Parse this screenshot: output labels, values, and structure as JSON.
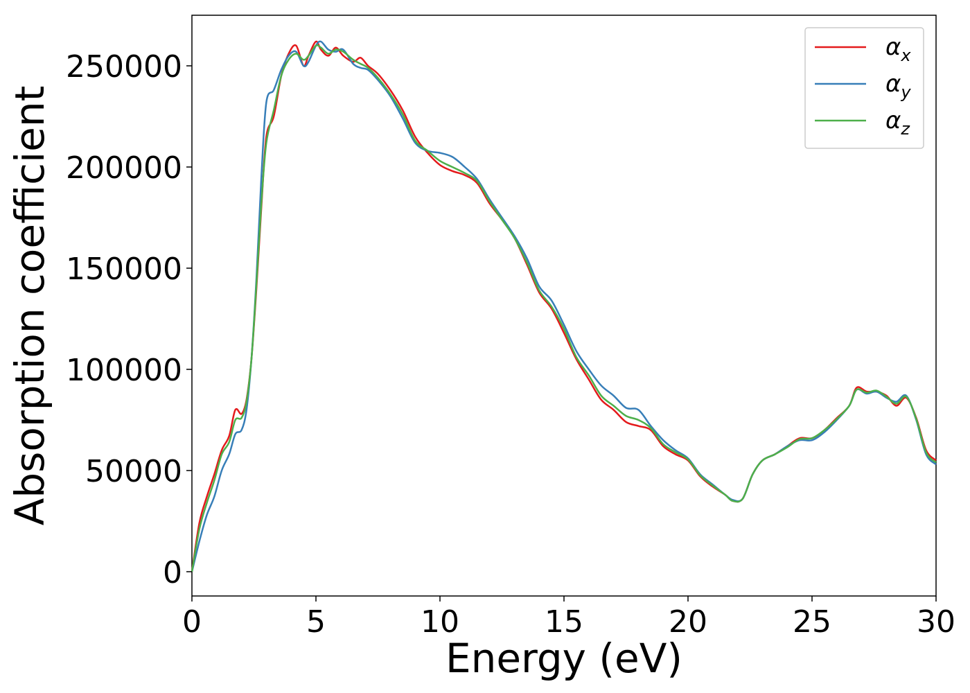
{
  "chart_data": {
    "type": "line",
    "title": "",
    "xlabel": "Energy (eV)",
    "ylabel": "Absorption coefficient",
    "xlim": [
      0,
      30
    ],
    "ylim": [
      -12000,
      275000
    ],
    "x_ticks": [
      "0",
      "5",
      "10",
      "15",
      "20",
      "25",
      "30"
    ],
    "y_ticks": [
      "0",
      "50000",
      "100000",
      "150000",
      "200000",
      "250000"
    ],
    "grid": false,
    "legend": {
      "position": "top-right"
    },
    "series": [
      {
        "name": "αx",
        "name_base": "α",
        "name_sub": "x",
        "color": "#e41a1c",
        "x": [
          0,
          0.3,
          0.6,
          0.9,
          1.2,
          1.5,
          1.75,
          2.0,
          2.2,
          2.4,
          2.6,
          2.8,
          3.0,
          3.3,
          3.6,
          3.9,
          4.2,
          4.5,
          4.7,
          5.0,
          5.2,
          5.5,
          5.8,
          6.1,
          6.5,
          6.8,
          7.1,
          7.5,
          8.0,
          8.5,
          9.0,
          9.5,
          10.0,
          10.5,
          11.0,
          11.5,
          12.0,
          12.5,
          13.0,
          13.5,
          14.0,
          14.5,
          15.0,
          15.5,
          16.0,
          16.5,
          17.0,
          17.5,
          18.0,
          18.5,
          19.0,
          19.5,
          20.0,
          20.5,
          21.0,
          21.5,
          21.8,
          22.2,
          22.6,
          23.0,
          23.5,
          24.0,
          24.5,
          25.0,
          25.5,
          26.0,
          26.5,
          26.8,
          27.2,
          27.6,
          28.0,
          28.4,
          28.8,
          29.2,
          29.6,
          30.0
        ],
        "values": [
          0,
          24000,
          37000,
          48000,
          60000,
          67000,
          80000,
          78000,
          85000,
          105000,
          140000,
          180000,
          215000,
          225000,
          245000,
          256000,
          260000,
          250000,
          255000,
          262000,
          258000,
          255000,
          259000,
          255000,
          252000,
          254000,
          250000,
          246000,
          238000,
          228000,
          215000,
          207000,
          201000,
          198000,
          196000,
          192000,
          182000,
          174000,
          165000,
          152000,
          138000,
          130000,
          118000,
          105000,
          95000,
          85000,
          80000,
          74000,
          72000,
          70000,
          62000,
          58000,
          55000,
          47000,
          42000,
          38000,
          35000,
          36000,
          48000,
          55000,
          58000,
          62000,
          66000,
          66000,
          70000,
          76000,
          82000,
          91000,
          89000,
          89000,
          87000,
          82000,
          86000,
          76000,
          60000,
          55000
        ]
      },
      {
        "name": "αy",
        "name_base": "α",
        "name_sub": "y",
        "color": "#377eb8",
        "x": [
          0,
          0.3,
          0.6,
          0.9,
          1.2,
          1.5,
          1.75,
          2.0,
          2.2,
          2.4,
          2.6,
          2.8,
          3.0,
          3.3,
          3.6,
          3.9,
          4.2,
          4.5,
          4.7,
          5.0,
          5.2,
          5.5,
          5.8,
          6.1,
          6.5,
          6.8,
          7.1,
          7.5,
          8.0,
          8.5,
          9.0,
          9.5,
          10.0,
          10.5,
          11.0,
          11.5,
          12.0,
          12.5,
          13.0,
          13.5,
          14.0,
          14.5,
          15.0,
          15.5,
          16.0,
          16.5,
          17.0,
          17.5,
          18.0,
          18.5,
          19.0,
          19.5,
          20.0,
          20.5,
          21.0,
          21.5,
          21.8,
          22.2,
          22.6,
          23.0,
          23.5,
          24.0,
          24.5,
          25.0,
          25.5,
          26.0,
          26.5,
          26.8,
          27.2,
          27.6,
          28.0,
          28.4,
          28.8,
          29.2,
          29.6,
          30.0
        ],
        "values": [
          0,
          15000,
          28000,
          37000,
          50000,
          58000,
          68000,
          70000,
          80000,
          105000,
          145000,
          195000,
          232000,
          238000,
          248000,
          255000,
          257000,
          250000,
          252000,
          260000,
          262000,
          258000,
          257000,
          258000,
          251000,
          249000,
          248000,
          243000,
          235000,
          224000,
          212000,
          208000,
          207000,
          205000,
          200000,
          194000,
          184000,
          175000,
          166000,
          155000,
          141000,
          134000,
          122000,
          109000,
          100000,
          92000,
          87000,
          81000,
          80000,
          72000,
          65000,
          60000,
          56000,
          48000,
          43000,
          38000,
          35500,
          36000,
          48000,
          55000,
          58000,
          62000,
          65000,
          65000,
          69000,
          75000,
          82000,
          90000,
          88000,
          89000,
          86000,
          84000,
          87000,
          75000,
          58000,
          53000
        ]
      },
      {
        "name": "αz",
        "name_base": "α",
        "name_sub": "z",
        "color": "#4daf4a",
        "x": [
          0,
          0.3,
          0.6,
          0.9,
          1.2,
          1.5,
          1.75,
          2.0,
          2.2,
          2.4,
          2.6,
          2.8,
          3.0,
          3.3,
          3.6,
          3.9,
          4.2,
          4.5,
          4.7,
          5.0,
          5.2,
          5.5,
          5.8,
          6.1,
          6.5,
          6.8,
          7.1,
          7.5,
          8.0,
          8.5,
          9.0,
          9.5,
          10.0,
          10.5,
          11.0,
          11.5,
          12.0,
          12.5,
          13.0,
          13.5,
          14.0,
          14.5,
          15.0,
          15.5,
          16.0,
          16.5,
          17.0,
          17.5,
          18.0,
          18.5,
          19.0,
          19.5,
          20.0,
          20.5,
          21.0,
          21.5,
          21.8,
          22.2,
          22.6,
          23.0,
          23.5,
          24.0,
          24.5,
          25.0,
          25.5,
          26.0,
          26.5,
          26.8,
          27.2,
          27.6,
          28.0,
          28.4,
          28.8,
          29.2,
          29.6,
          30.0
        ],
        "values": [
          0,
          21000,
          34000,
          45000,
          58000,
          64000,
          75000,
          76000,
          84000,
          105000,
          142000,
          182000,
          212000,
          228000,
          245000,
          253000,
          256000,
          253000,
          255000,
          260000,
          259000,
          256000,
          258000,
          257000,
          253000,
          251000,
          249000,
          244000,
          236000,
          226000,
          213000,
          208000,
          203000,
          200000,
          197000,
          193000,
          183000,
          174000,
          165000,
          153000,
          139000,
          131000,
          120000,
          106000,
          97000,
          87000,
          82000,
          77000,
          75000,
          71000,
          63000,
          59000,
          55500,
          47500,
          42500,
          38000,
          35000,
          36000,
          48000,
          55000,
          58000,
          61500,
          65500,
          66000,
          70000,
          75500,
          82000,
          90000,
          88500,
          89500,
          86500,
          83000,
          86500,
          75500,
          59000,
          54000
        ]
      }
    ]
  }
}
